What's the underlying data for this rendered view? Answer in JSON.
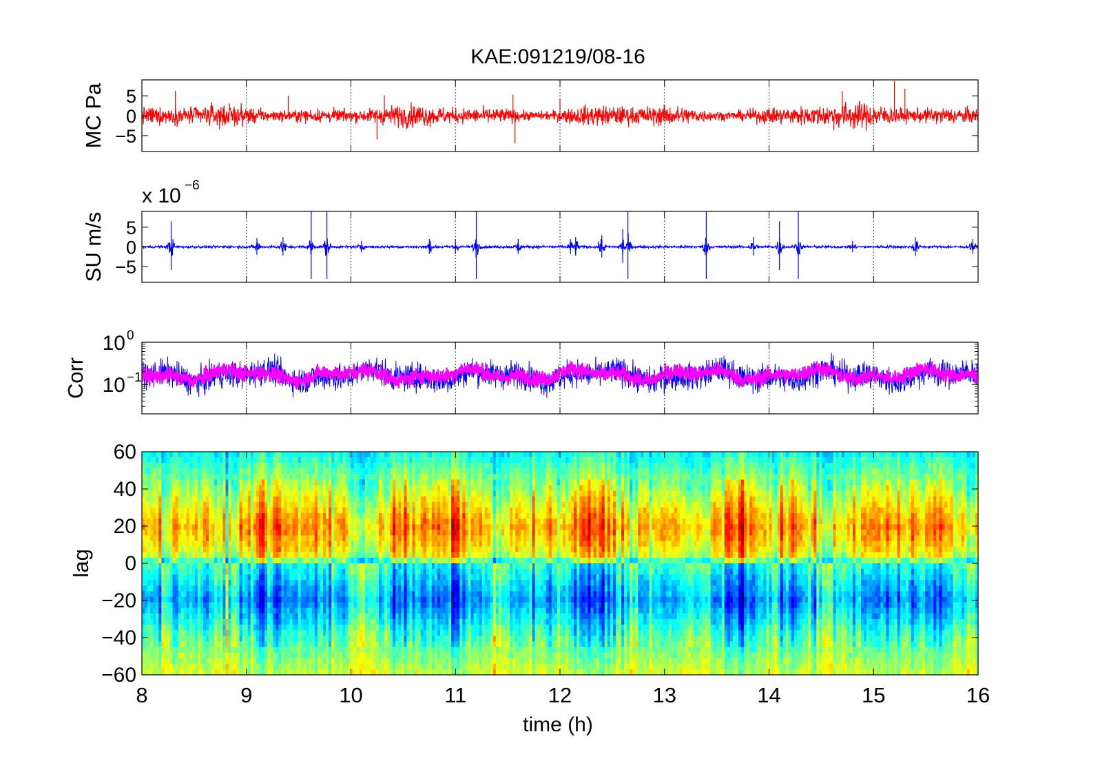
{
  "title": "KAE:091219/08-16",
  "xlabel": "time (h)",
  "x_ticks": [
    "8",
    "9",
    "10",
    "11",
    "12",
    "13",
    "14",
    "15",
    "16"
  ],
  "chart_data": [
    {
      "type": "line",
      "name": "mc",
      "ylabel": "MC Pa",
      "xlim": [
        8,
        16
      ],
      "ylim": [
        -9,
        9
      ],
      "y_ticks": [
        {
          "v": 5,
          "label": "5"
        },
        {
          "v": 0,
          "label": "0"
        },
        {
          "v": -5,
          "label": "−5"
        }
      ],
      "grid_x": true,
      "color": "#ff0000",
      "noise_amplitude": 2.2,
      "spikes": [
        {
          "x": 8.32,
          "y": 6.2
        },
        {
          "x": 9.4,
          "y": 5.0
        },
        {
          "x": 10.32,
          "y": 5.1
        },
        {
          "x": 10.25,
          "y": -6.0
        },
        {
          "x": 11.55,
          "y": 5.3
        },
        {
          "x": 11.57,
          "y": -7.0
        },
        {
          "x": 12.0,
          "y": 4.2
        },
        {
          "x": 14.7,
          "y": 6.2
        },
        {
          "x": 15.2,
          "y": 8.7
        },
        {
          "x": 15.3,
          "y": 6.8
        },
        {
          "x": 16.0,
          "y": -8.0
        }
      ]
    },
    {
      "type": "line",
      "name": "su",
      "ylabel": "SU m/s",
      "exponent_label": "x 10",
      "exponent": "−6",
      "xlim": [
        8,
        16
      ],
      "ylim": [
        -9,
        9
      ],
      "y_ticks": [
        {
          "v": 5,
          "label": "5"
        },
        {
          "v": 0,
          "label": "0"
        },
        {
          "v": -5,
          "label": "−5"
        }
      ],
      "grid_x": true,
      "color": "#0000ff",
      "noise_amplitude": 0.4,
      "bursts": [
        {
          "x": 8.28,
          "amp": 6.5
        },
        {
          "x": 9.1,
          "amp": 2.2
        },
        {
          "x": 9.35,
          "amp": 2.5
        },
        {
          "x": 9.62,
          "amp": 9
        },
        {
          "x": 9.77,
          "amp": 9
        },
        {
          "x": 10.1,
          "amp": 1.5
        },
        {
          "x": 10.75,
          "amp": 2.0
        },
        {
          "x": 11.0,
          "amp": 2.0
        },
        {
          "x": 11.2,
          "amp": 9
        },
        {
          "x": 11.6,
          "amp": 2.0
        },
        {
          "x": 12.1,
          "amp": 2.0
        },
        {
          "x": 12.15,
          "amp": 2.5
        },
        {
          "x": 12.4,
          "amp": 3.0
        },
        {
          "x": 12.6,
          "amp": 4.5
        },
        {
          "x": 12.65,
          "amp": 9
        },
        {
          "x": 13.4,
          "amp": 9
        },
        {
          "x": 13.85,
          "amp": 2.5
        },
        {
          "x": 14.1,
          "amp": 6.5
        },
        {
          "x": 14.28,
          "amp": 9
        },
        {
          "x": 14.8,
          "amp": 1.5
        },
        {
          "x": 15.4,
          "amp": 2.5
        },
        {
          "x": 15.95,
          "amp": 2.0
        }
      ]
    },
    {
      "type": "line",
      "name": "corr",
      "ylabel": "Corr",
      "yscale": "log",
      "xlim": [
        8,
        16
      ],
      "ylim": [
        0.02,
        1
      ],
      "y_ticks": [
        {
          "v": 1,
          "base": "10",
          "exp": "0"
        },
        {
          "v": 0.1,
          "base": "10",
          "exp": "−1"
        }
      ],
      "grid_x": true,
      "series": [
        {
          "name": "",
          "color": "#0000ff",
          "center": 0.16,
          "spread": 0.55
        },
        {
          "name": "",
          "color": "#ff00ff",
          "center": 0.17,
          "spread": 0.32
        }
      ]
    },
    {
      "type": "heatmap",
      "name": "lag",
      "ylabel": "lag",
      "xlim": [
        8,
        16
      ],
      "ylim": [
        -60,
        60
      ],
      "y_ticks": [
        {
          "v": 60,
          "label": "60"
        },
        {
          "v": 40,
          "label": "40"
        },
        {
          "v": 20,
          "label": "20"
        },
        {
          "v": 0,
          "label": "0"
        },
        {
          "v": -20,
          "label": "−20"
        },
        {
          "v": -40,
          "label": "−40"
        },
        {
          "v": -60,
          "label": "−60"
        }
      ],
      "colormap": "jet",
      "mean_profile": [
        {
          "lag": 60,
          "value": 0.38
        },
        {
          "lag": 40,
          "value": 0.55
        },
        {
          "lag": 20,
          "value": 0.72
        },
        {
          "lag": 5,
          "value": 0.62
        },
        {
          "lag": 0,
          "value": 0.42
        },
        {
          "lag": -20,
          "value": 0.27
        },
        {
          "lag": -40,
          "value": 0.45
        },
        {
          "lag": -60,
          "value": 0.58
        }
      ]
    }
  ]
}
